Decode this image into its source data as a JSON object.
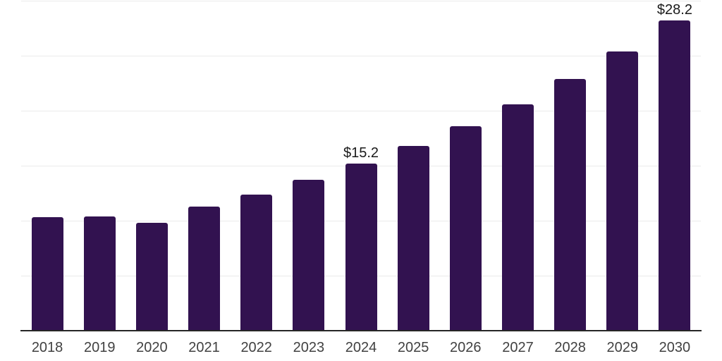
{
  "chart_data": {
    "type": "bar",
    "title": "",
    "xlabel": "",
    "ylabel": "",
    "categories": [
      "2018",
      "2019",
      "2020",
      "2021",
      "2022",
      "2023",
      "2024",
      "2025",
      "2026",
      "2027",
      "2028",
      "2029",
      "2030"
    ],
    "values": [
      10.3,
      10.4,
      9.8,
      11.3,
      12.4,
      13.7,
      15.2,
      16.8,
      18.6,
      20.6,
      22.9,
      25.4,
      28.2
    ],
    "data_labels": [
      {
        "category": "2024",
        "text": "$15.2"
      },
      {
        "category": "2030",
        "text": "$28.2"
      }
    ],
    "ylim": [
      0,
      30
    ],
    "gridline_values": [
      5,
      10,
      15,
      20,
      25,
      30
    ],
    "grid": true,
    "y_axis_tick_labels_visible": false,
    "legend_position": "none",
    "colors": {
      "bar": "#321250",
      "gridline": "#eaeaea",
      "axis_line": "#262626",
      "x_tick_label": "#414141",
      "value_label": "#1a1a1a",
      "background": "#ffffff"
    }
  }
}
